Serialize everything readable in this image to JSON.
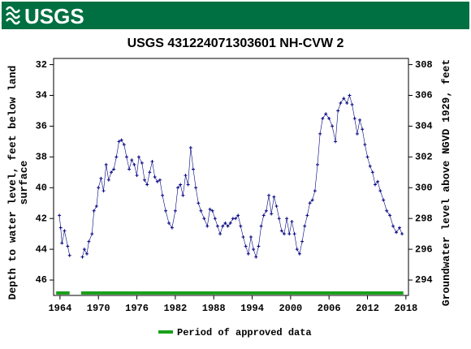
{
  "header": {
    "logo_text": "USGS"
  },
  "chart_data": {
    "type": "scatter",
    "title": "USGS 431224071303601 NH-CVW    2",
    "ylabel": [
      "Depth to water level, feet below land",
      "surface"
    ],
    "y2label": "Groundwater level above NGVD 1929, feet",
    "xlim": [
      1963,
      2018.4
    ],
    "xticks": [
      1964,
      1970,
      1976,
      1982,
      1988,
      1994,
      2000,
      2006,
      2012,
      2018
    ],
    "ylim": [
      47,
      31.6
    ],
    "yticks": [
      32,
      34,
      36,
      38,
      40,
      42,
      44,
      46
    ],
    "y2lim": [
      293,
      308.4
    ],
    "y2ticks": [
      294,
      296,
      298,
      300,
      302,
      304,
      306,
      308
    ],
    "x": [
      1963.9,
      1964.1,
      1964.3,
      1964.7,
      1965.2,
      1965.5,
      1966.5,
      1967.5,
      1967.8,
      1968.2,
      1968.5,
      1969.0,
      1969.3,
      1969.7,
      1970.0,
      1970.4,
      1970.8,
      1971.2,
      1971.6,
      1972.0,
      1972.4,
      1972.8,
      1973.2,
      1973.6,
      1974.0,
      1974.4,
      1974.8,
      1975.2,
      1975.6,
      1976.0,
      1976.3,
      1976.8,
      1977.2,
      1977.6,
      1978.0,
      1978.4,
      1978.8,
      1979.2,
      1979.6,
      1980.0,
      1980.5,
      1981.0,
      1981.5,
      1982.0,
      1982.4,
      1982.8,
      1983.2,
      1983.6,
      1984.0,
      1984.4,
      1984.8,
      1985.2,
      1985.6,
      1986.0,
      1986.5,
      1987.0,
      1987.4,
      1987.8,
      1988.2,
      1988.6,
      1989.0,
      1989.4,
      1989.8,
      1990.2,
      1990.6,
      1991.0,
      1991.4,
      1991.8,
      1992.2,
      1992.6,
      1993.0,
      1993.4,
      1993.8,
      1994.2,
      1994.6,
      1995.0,
      1995.4,
      1995.8,
      1996.2,
      1996.6,
      1997.0,
      1997.4,
      1997.8,
      1998.2,
      1998.6,
      1999.0,
      1999.4,
      1999.8,
      2000.2,
      2000.6,
      2001.0,
      2001.4,
      2001.8,
      2002.2,
      2002.6,
      2003.0,
      2003.4,
      2003.8,
      2004.2,
      2004.6,
      2005.0,
      2005.5,
      2006.0,
      2006.5,
      2007.0,
      2007.4,
      2007.8,
      2008.3,
      2008.8,
      2009.2,
      2009.6,
      2010.0,
      2010.4,
      2010.8,
      2011.2,
      2011.6,
      2012.0,
      2012.4,
      2012.8,
      2013.2,
      2013.6,
      2014.0,
      2014.5,
      2015.0,
      2015.5,
      2016.0,
      2016.5,
      2017.0,
      2017.4
    ],
    "series": [
      {
        "color": "#000080",
        "values": [
          41.8,
          42.6,
          43.6,
          42.8,
          43.8,
          44.4,
          null,
          44.5,
          44.0,
          44.3,
          43.5,
          43.0,
          41.5,
          41.2,
          40.0,
          39.4,
          40.2,
          38.5,
          39.5,
          39.0,
          38.8,
          38.0,
          37.0,
          36.9,
          37.2,
          38.0,
          38.8,
          38.2,
          38.5,
          39.2,
          38.0,
          38.4,
          39.5,
          39.8,
          39.0,
          38.3,
          39.3,
          39.6,
          39.5,
          40.5,
          41.5,
          42.3,
          42.6,
          41.5,
          40.0,
          39.8,
          40.5,
          39.2,
          39.8,
          37.4,
          38.8,
          40.0,
          41.0,
          41.5,
          42.0,
          42.5,
          41.4,
          41.5,
          42.0,
          42.5,
          43.0,
          42.5,
          42.3,
          42.5,
          42.3,
          42.0,
          42.0,
          41.8,
          42.5,
          43.2,
          43.8,
          44.3,
          43.2,
          44.0,
          44.5,
          43.8,
          42.5,
          41.8,
          41.5,
          40.5,
          41.7,
          40.6,
          41.2,
          42.0,
          42.8,
          43.0,
          42.0,
          43.0,
          42.2,
          43.0,
          44.0,
          44.3,
          43.5,
          42.5,
          41.8,
          41.0,
          40.8,
          40.2,
          38.5,
          36.5,
          35.5,
          35.2,
          35.5,
          36.0,
          37.0,
          35.0,
          34.5,
          34.2,
          34.5,
          34.0,
          34.6,
          35.5,
          36.5,
          35.6,
          36.2,
          37.2,
          38.0,
          38.6,
          39.0,
          39.8,
          39.6,
          40.2,
          40.8,
          41.5,
          41.8,
          42.5,
          42.9,
          42.6,
          43.0
        ]
      }
    ],
    "approved": {
      "name": "Period of approved data",
      "color": "#1aa01a",
      "periods": [
        [
          1963.4,
          1965.5
        ],
        [
          1967.3,
          2017.6
        ]
      ]
    }
  }
}
